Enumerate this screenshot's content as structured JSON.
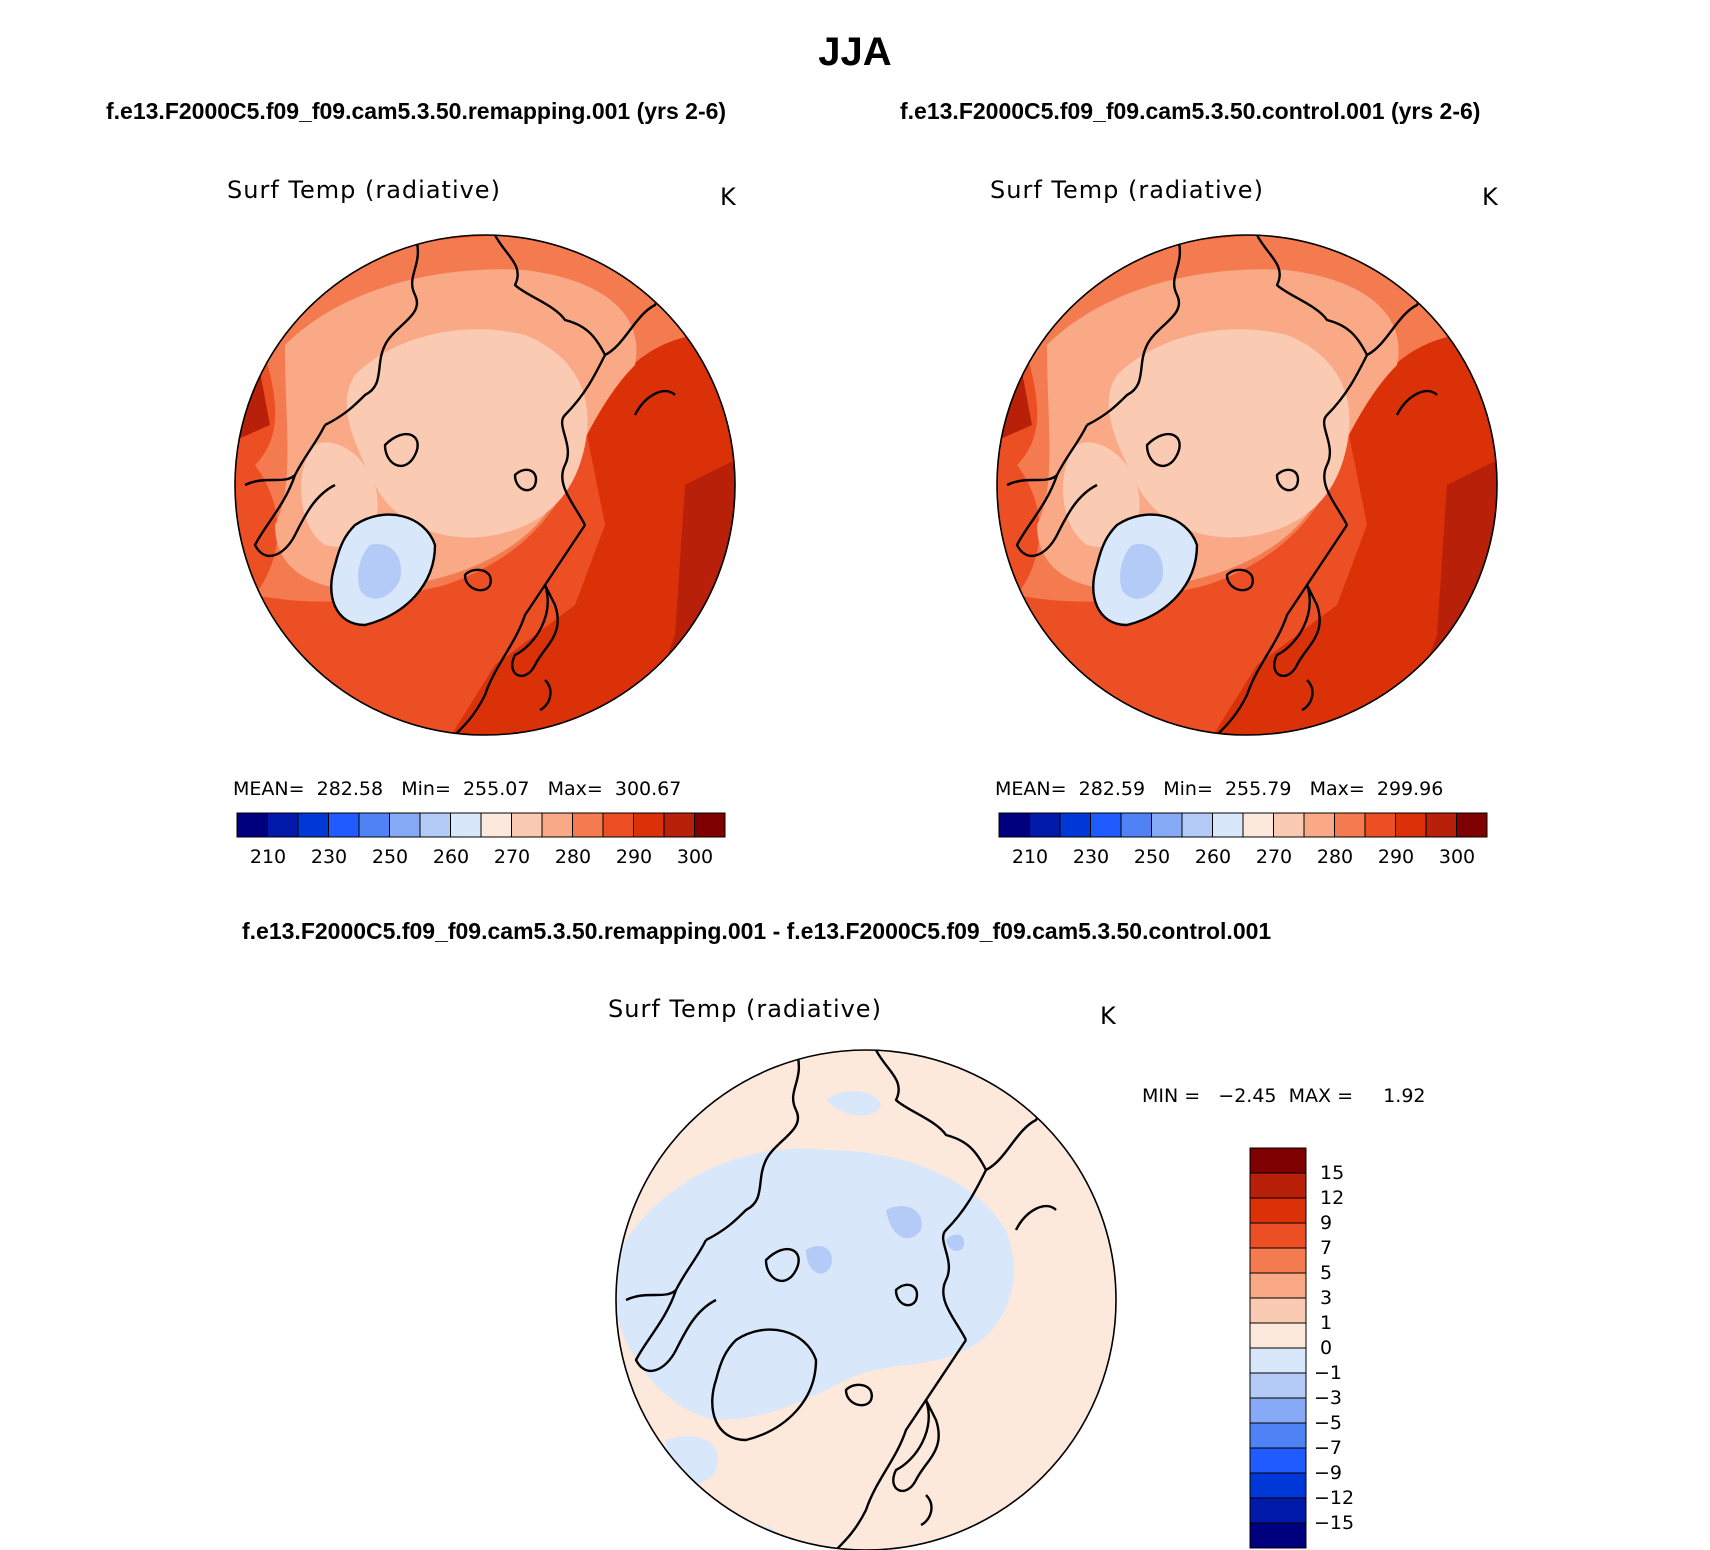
{
  "page": {
    "title": "JJA"
  },
  "colors": {
    "abs_scale": [
      "#00007f",
      "#0019a8",
      "#0038d8",
      "#1f5bff",
      "#4f83f5",
      "#86aaf6",
      "#b5cbf7",
      "#d9e7fb",
      "#fde8dc",
      "#fbcab2",
      "#f9a985",
      "#f47a4f",
      "#ed4f24",
      "#db3108",
      "#b8200a",
      "#7f0000"
    ],
    "diff_scale": [
      "#00007f",
      "#0019a8",
      "#0038d8",
      "#1f5bff",
      "#4f83f5",
      "#86aaf6",
      "#b5cbf7",
      "#d9e7fb",
      "#fde8dc",
      "#fbcab2",
      "#f9a985",
      "#f47a4f",
      "#ed4f24",
      "#db3108",
      "#b8200a",
      "#7f0000"
    ]
  },
  "panels": [
    {
      "case_title": "f.e13.F2000C5.f09_f09.cam5.3.50.remapping.001 (yrs 2-6)",
      "field": "Surf Temp (radiative)",
      "units": "K",
      "stats": {
        "mean_label": "MEAN=",
        "mean": "282.58",
        "min_label": "Min=",
        "min": "255.07",
        "max_label": "Max=",
        "max": "300.67"
      },
      "colorbar_ticks": [
        "210",
        "230",
        "250",
        "260",
        "270",
        "280",
        "290",
        "300"
      ]
    },
    {
      "case_title": "f.e13.F2000C5.f09_f09.cam5.3.50.control.001 (yrs 2-6)",
      "field": "Surf Temp (radiative)",
      "units": "K",
      "stats": {
        "mean_label": "MEAN=",
        "mean": "282.59",
        "min_label": "Min=",
        "min": "255.79",
        "max_label": "Max=",
        "max": "299.96"
      },
      "colorbar_ticks": [
        "210",
        "230",
        "250",
        "260",
        "270",
        "280",
        "290",
        "300"
      ]
    }
  ],
  "difference": {
    "title": "f.e13.F2000C5.f09_f09.cam5.3.50.remapping.001 - f.e13.F2000C5.f09_f09.cam5.3.50.control.001",
    "field": "Surf Temp (radiative)",
    "units": "K",
    "stats": {
      "min_label": "MIN =",
      "min": "−2.45",
      "max_label": "MAX =",
      "max": "1.92"
    },
    "colorbar_ticks": [
      "15",
      "12",
      "9",
      "7",
      "5",
      "3",
      "1",
      "0",
      "−1",
      "−3",
      "−5",
      "−7",
      "−9",
      "−12",
      "−15"
    ]
  }
}
